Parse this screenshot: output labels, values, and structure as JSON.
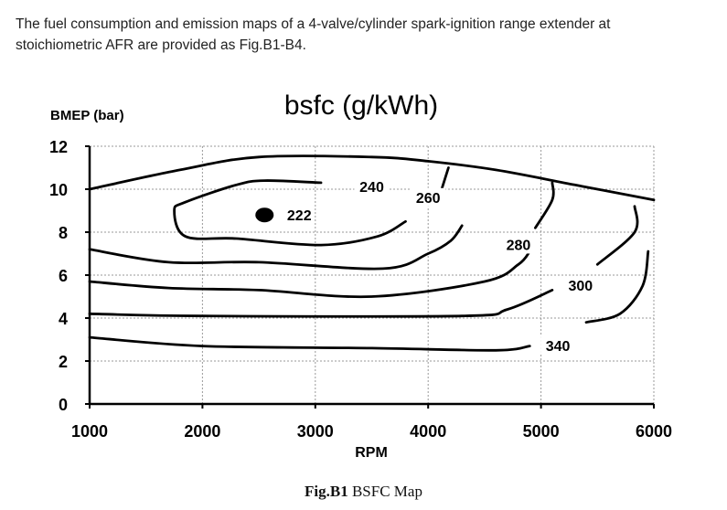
{
  "intro": {
    "line1": "The fuel consumption and emission maps of a 4-valve/cylinder spark-ignition range extender at",
    "line2": "stoichiometric AFR are provided as Fig.B1-B4."
  },
  "caption": {
    "label": "Fig.B1",
    "text": "BSFC Map"
  },
  "chart_data": {
    "type": "contour",
    "title": "bsfc (g/kWh)",
    "xlabel": "RPM",
    "ylabel": "BMEP (bar)",
    "xlim": [
      1000,
      6000
    ],
    "ylim": [
      0,
      12
    ],
    "xticks": [
      "1000",
      "2000",
      "3000",
      "4000",
      "5000",
      "6000"
    ],
    "yticks": [
      "0",
      "2",
      "4",
      "6",
      "8",
      "10",
      "12"
    ],
    "grid": true,
    "optimum": {
      "label": "222",
      "rpm": 2550,
      "bmep": 8.8
    },
    "contours": [
      {
        "level": 240,
        "label": "240",
        "label_at": {
          "rpm": 3500,
          "bmep": 10.0
        },
        "points": [
          [
            3050,
            10.3
          ],
          [
            2550,
            10.4
          ],
          [
            2300,
            10.2
          ],
          [
            1850,
            9.4
          ],
          [
            1750,
            9.0
          ],
          [
            1850,
            7.8
          ],
          [
            2300,
            7.7
          ],
          [
            3050,
            7.4
          ],
          [
            3550,
            7.8
          ],
          [
            3800,
            8.5
          ]
        ]
      },
      {
        "level": 260,
        "label": "260",
        "label_at": {
          "rpm": 4000,
          "bmep": 9.5
        },
        "points": [
          [
            1000,
            7.2
          ],
          [
            1700,
            6.6
          ],
          [
            2500,
            6.6
          ],
          [
            3600,
            6.3
          ],
          [
            4000,
            7.0
          ],
          [
            4200,
            7.6
          ],
          [
            4300,
            8.3
          ]
        ],
        "extra_points": [
          [
            4180,
            11.0
          ],
          [
            4120,
            10.0
          ]
        ]
      },
      {
        "level": 280,
        "label": "280",
        "label_at": {
          "rpm": 4800,
          "bmep": 7.3
        },
        "points": [
          [
            1000,
            5.7
          ],
          [
            1700,
            5.4
          ],
          [
            2500,
            5.3
          ],
          [
            3500,
            5.0
          ],
          [
            4500,
            5.7
          ],
          [
            4800,
            6.5
          ],
          [
            4900,
            7.1
          ]
        ],
        "extra_points": [
          [
            5100,
            10.3
          ],
          [
            5100,
            9.5
          ],
          [
            4950,
            8.2
          ]
        ]
      },
      {
        "level": 300,
        "label": "300",
        "label_at": {
          "rpm": 5350,
          "bmep": 5.4
        },
        "points": [
          [
            1000,
            4.2
          ],
          [
            2000,
            4.1
          ],
          [
            4300,
            4.1
          ],
          [
            4700,
            4.4
          ],
          [
            5100,
            5.3
          ]
        ],
        "extra_points": [
          [
            5830,
            9.2
          ],
          [
            5830,
            8.0
          ],
          [
            5500,
            6.5
          ]
        ]
      },
      {
        "level": 340,
        "label": "340",
        "label_at": {
          "rpm": 5150,
          "bmep": 2.6
        },
        "points": [
          [
            1000,
            3.1
          ],
          [
            2000,
            2.7
          ],
          [
            3500,
            2.6
          ],
          [
            4600,
            2.5
          ],
          [
            4900,
            2.7
          ]
        ],
        "extra_points": [
          [
            5950,
            7.1
          ],
          [
            5900,
            5.5
          ],
          [
            5700,
            4.2
          ],
          [
            5400,
            3.8
          ]
        ]
      },
      {
        "level": null,
        "label": "",
        "points": [
          [
            1000,
            10.0
          ],
          [
            1800,
            10.9
          ],
          [
            2500,
            11.5
          ],
          [
            3500,
            11.5
          ],
          [
            4000,
            11.3
          ],
          [
            4600,
            10.9
          ],
          [
            5300,
            10.2
          ],
          [
            6000,
            9.5
          ]
        ]
      }
    ]
  }
}
